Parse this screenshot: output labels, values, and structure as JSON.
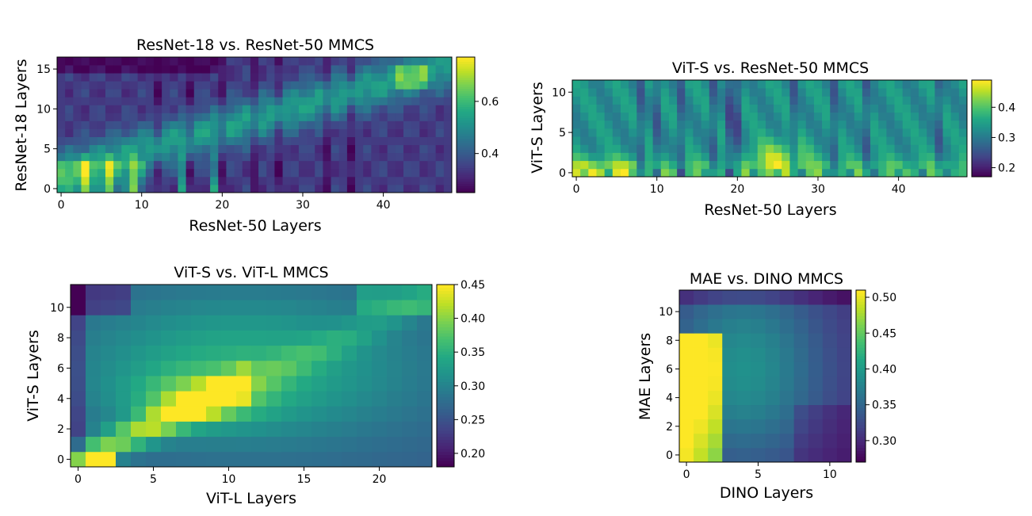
{
  "figure": {
    "panels": [
      "resnet18-vs-resnet50",
      "vits-vs-resnet50",
      "vits-vs-vitl",
      "mae-vs-dino"
    ]
  },
  "chart_data": [
    {
      "id": "resnet18-vs-resnet50",
      "type": "heatmap",
      "title": "ResNet-18 vs. ResNet-50 MMCS",
      "xlabel": "ResNet-50 Layers",
      "ylabel": "ResNet-18 Layers",
      "nx": 49,
      "ny": 17,
      "xticks": [
        0,
        10,
        20,
        30,
        40
      ],
      "yticks": [
        0,
        5,
        10,
        15
      ],
      "xtick_labels": [
        "0",
        "10",
        "20",
        "30",
        "40"
      ],
      "ytick_labels": [
        "0",
        "5",
        "10",
        "15"
      ],
      "vmin": 0.25,
      "vmax": 0.77,
      "cbar_ticks": [
        0.4,
        0.6
      ],
      "cbar_labels": [
        "0.4",
        "0.6"
      ],
      "colormap": "viridis",
      "pattern": "low-layer bright columns at x=3,6,9; diagonal bright band rising to top-right (peak ≈0.77 near x=44,y=14); periodic dark column stripes"
    },
    {
      "id": "vits-vs-resnet50",
      "type": "heatmap",
      "title": "ViT-S vs. ResNet-50 MMCS",
      "xlabel": "ResNet-50 Layers",
      "ylabel": "ViT-S Layers",
      "nx": 49,
      "ny": 12,
      "xticks": [
        0,
        10,
        20,
        30,
        40
      ],
      "yticks": [
        0,
        5,
        10
      ],
      "xtick_labels": [
        "0",
        "10",
        "20",
        "30",
        "40"
      ],
      "ytick_labels": [
        "0",
        "5",
        "10"
      ],
      "vmin": 0.17,
      "vmax": 0.49,
      "cbar_ticks": [
        0.2,
        0.3,
        0.4
      ],
      "cbar_labels": [
        "0.2",
        "0.3",
        "0.4"
      ],
      "colormap": "viridis",
      "pattern": "mostly 0.3–0.38 with vertical stripe structure; bright yellow near bottom rows at x=3–6 and x=24–26; dark columns near x=19–21"
    },
    {
      "id": "vits-vs-vitl",
      "type": "heatmap",
      "title": "ViT-S vs. ViT-L MMCS",
      "xlabel": "ViT-L Layers",
      "ylabel": "ViT-S Layers",
      "nx": 24,
      "ny": 12,
      "xticks": [
        0,
        5,
        10,
        15,
        20
      ],
      "yticks": [
        0,
        2,
        4,
        6,
        8,
        10
      ],
      "xtick_labels": [
        "0",
        "5",
        "10",
        "15",
        "20"
      ],
      "ytick_labels": [
        "0",
        "2",
        "4",
        "6",
        "8",
        "10"
      ],
      "vmin": 0.18,
      "vmax": 0.45,
      "cbar_ticks": [
        0.2,
        0.25,
        0.3,
        0.35,
        0.4,
        0.45
      ],
      "cbar_labels": [
        "0.20",
        "0.25",
        "0.30",
        "0.35",
        "0.40",
        "0.45"
      ],
      "colormap": "viridis",
      "pattern": "bright diagonal from (0,0) rising to ≈(9,4); broad 0.35 plateau in middle-upper region; dark left column and top-left corner"
    },
    {
      "id": "mae-vs-dino",
      "type": "heatmap",
      "title": "MAE vs. DINO MMCS",
      "xlabel": "DINO Layers",
      "ylabel": "MAE Layers",
      "nx": 12,
      "ny": 12,
      "xticks": [
        0,
        5,
        10
      ],
      "yticks": [
        0,
        2,
        4,
        6,
        8,
        10
      ],
      "xtick_labels": [
        "0",
        "5",
        "10"
      ],
      "ytick_labels": [
        "0",
        "2",
        "4",
        "6",
        "8",
        "10"
      ],
      "vmin": 0.27,
      "vmax": 0.51,
      "cbar_ticks": [
        0.3,
        0.35,
        0.4,
        0.45,
        0.5
      ],
      "cbar_labels": [
        "0.30",
        "0.35",
        "0.40",
        "0.45",
        "0.50"
      ],
      "colormap": "viridis",
      "pattern": "bright yellow block for DINO layers 0–2 and MAE layers 0–8; values decay to ≈0.28 toward bottom-right; top row darker"
    }
  ]
}
